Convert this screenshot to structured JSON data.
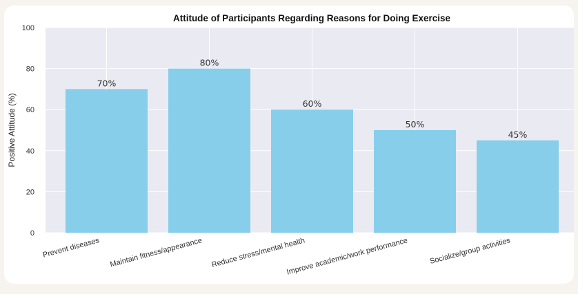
{
  "chart_data": {
    "type": "bar",
    "title": "Attitude of Participants Regarding Reasons for Doing Exercise",
    "xlabel": "",
    "ylabel": "Positive Attitude (%)",
    "categories": [
      "Prevent diseases",
      "Maintain fitness/appearance",
      "Reduce stress/mental health",
      "Improve academic/work performance",
      "Socialize/group activities"
    ],
    "values": [
      70,
      80,
      60,
      50,
      45
    ],
    "data_labels": [
      "70%",
      "80%",
      "60%",
      "50%",
      "45%"
    ],
    "ylim": [
      0,
      100
    ],
    "yticks": [
      0,
      20,
      40,
      60,
      80,
      100
    ],
    "ytick_labels": [
      "0",
      "20",
      "40",
      "60",
      "80",
      "100"
    ],
    "grid": true,
    "colors": {
      "bar": "#87ceeb",
      "plot_background": "#eaeaf2",
      "grid": "#ffffff",
      "card_background": "#ffffff",
      "page_background": "#f7f3ef"
    }
  }
}
